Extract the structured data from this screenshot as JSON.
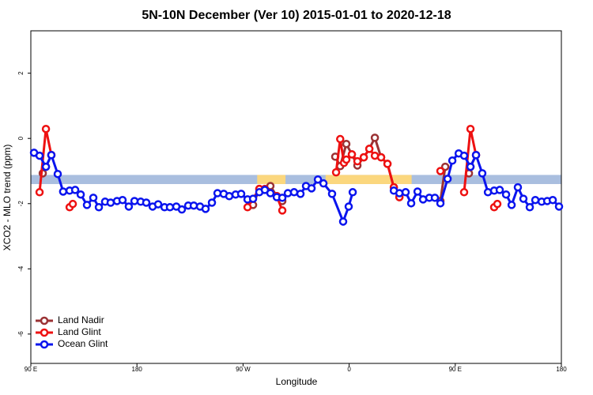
{
  "chart_data": {
    "type": "line",
    "title": "5N-10N December (Ver 10)   2015-01-01 to 2020-12-18",
    "x_label": "Longitude",
    "y_label": "XCO2 - MLO trend (ppm)",
    "xlim": [
      90,
      540
    ],
    "xticks": [
      {
        "value": 90,
        "label": "90 E"
      },
      180,
      {
        "value": 270,
        "label": "90 W"
      },
      {
        "value": 360,
        "label": "0"
      },
      {
        "value": 450,
        "label": "90 E"
      },
      {
        "value": 540,
        "label": "180"
      }
    ],
    "ylim": [
      -6.9,
      3.3
    ],
    "yticks": [
      -6,
      -4,
      -2,
      0,
      2
    ],
    "legend": "bottom-left",
    "reference_band": {
      "ylim": [
        -1.4,
        -1.12
      ],
      "color": "#a9bedf"
    },
    "highlight_spans": {
      "color": "#fbd77e",
      "ranges": [
        [
          282,
          306
        ],
        [
          340,
          413
        ]
      ]
    },
    "series": [
      {
        "name": "Land Nadir",
        "color": "#9b3234",
        "x": [
          100.1,
          102.8,
          107.4,
          200,
          278.5,
          283.8,
          293.2,
          298.6,
          303.3,
          310,
          348.2,
          352.4,
          357.6,
          362.3,
          367.0,
          372.4,
          377.1,
          381.8,
          387.1,
          392.5,
          397.9,
          402.6,
          420,
          437.4,
          441.5,
          450,
          461.6,
          462.9,
          467.6
        ],
        "values": [
          -1.07,
          -0.87,
          -0.51,
          null,
          -2.04,
          -1.55,
          -1.46,
          -1.77,
          -1.92,
          null,
          -0.56,
          -0.85,
          -0.17,
          -0.49,
          -0.83,
          -0.58,
          -0.32,
          0.02,
          -0.58,
          -0.78,
          -1.5,
          -1.8,
          null,
          -1.92,
          -0.87,
          null,
          -1.07,
          -0.87,
          -0.51
        ]
      },
      {
        "name": "Land Glint",
        "color": "#ee1111",
        "x": [
          97.4,
          102.8,
          107.4,
          115,
          122.9,
          125.6,
          200,
          273.8,
          283.8,
          288.5,
          298.6,
          303.3,
          320,
          348.9,
          352.4,
          355.6,
          357.6,
          362.3,
          367.0,
          372.4,
          377.1,
          381.8,
          387.1,
          392.5,
          397.9,
          402.6,
          420,
          437.4,
          450,
          457.5,
          462.9,
          467.6,
          475,
          483.0,
          485.7
        ],
        "values": [
          -1.65,
          0.29,
          -0.51,
          null,
          -2.11,
          -2.01,
          null,
          -2.11,
          -1.55,
          -1.55,
          -1.77,
          -2.21,
          null,
          -1.04,
          -0.02,
          -0.75,
          -0.65,
          -0.49,
          -0.7,
          -0.58,
          -0.32,
          -0.53,
          -0.58,
          -0.78,
          -1.5,
          -1.8,
          null,
          -1.0,
          null,
          -1.65,
          0.29,
          -0.51,
          null,
          -2.11,
          -2.01
        ]
      },
      {
        "name": "Ocean Glint",
        "color": "#0a14ee",
        "x": [
          92.7,
          97.4,
          102.8,
          107.4,
          112.8,
          117.4,
          122.9,
          127.6,
          132.3,
          137.6,
          143.0,
          147.7,
          153.0,
          157.7,
          163.1,
          167.8,
          173.1,
          177.9,
          183.2,
          187.9,
          193.3,
          198.0,
          203.4,
          208.0,
          213.4,
          218.1,
          223.5,
          228.2,
          233.5,
          238.2,
          243.6,
          248.3,
          253.6,
          258.3,
          263.7,
          268.4,
          273.8,
          278.5,
          283.8,
          288.5,
          293.2,
          298.6,
          303.3,
          308.0,
          313.3,
          318.7,
          323.4,
          328.1,
          333.5,
          338.2,
          345.5,
          354.9,
          359.6,
          363.0,
          380,
          397.9,
          402.6,
          407.9,
          412.6,
          418.0,
          422.7,
          428.0,
          432.7,
          437.4,
          443.5,
          447.5,
          452.9,
          457.5,
          462.9,
          467.6,
          472.9,
          477.7,
          483.0,
          487.7,
          493.1,
          497.8,
          503.1,
          507.8,
          513.2,
          517.9,
          523.3,
          528.0,
          532.7,
          538.0
        ],
        "values": [
          -0.44,
          -0.53,
          -0.87,
          -0.51,
          -1.09,
          -1.63,
          -1.6,
          -1.58,
          -1.72,
          -2.04,
          -1.82,
          -2.11,
          -1.94,
          -1.97,
          -1.92,
          -1.89,
          -2.09,
          -1.92,
          -1.94,
          -1.97,
          -2.09,
          -2.02,
          -2.11,
          -2.11,
          -2.09,
          -2.18,
          -2.06,
          -2.06,
          -2.09,
          -2.16,
          -1.97,
          -1.68,
          -1.7,
          -1.77,
          -1.72,
          -1.7,
          -1.87,
          -1.85,
          -1.65,
          -1.58,
          -1.68,
          -1.8,
          -1.82,
          -1.68,
          -1.65,
          -1.7,
          -1.46,
          -1.53,
          -1.26,
          -1.38,
          -1.7,
          -2.55,
          -2.09,
          -1.65,
          null,
          -1.6,
          -1.68,
          -1.65,
          -1.99,
          -1.63,
          -1.87,
          -1.82,
          -1.82,
          -1.99,
          -1.24,
          -0.68,
          -0.46,
          -0.53,
          -0.87,
          -0.51,
          -1.07,
          -1.65,
          -1.6,
          -1.58,
          -1.72,
          -2.04,
          -1.5,
          -1.85,
          -2.11,
          -1.89,
          -1.94,
          -1.92,
          -1.89,
          -2.09
        ]
      }
    ]
  }
}
